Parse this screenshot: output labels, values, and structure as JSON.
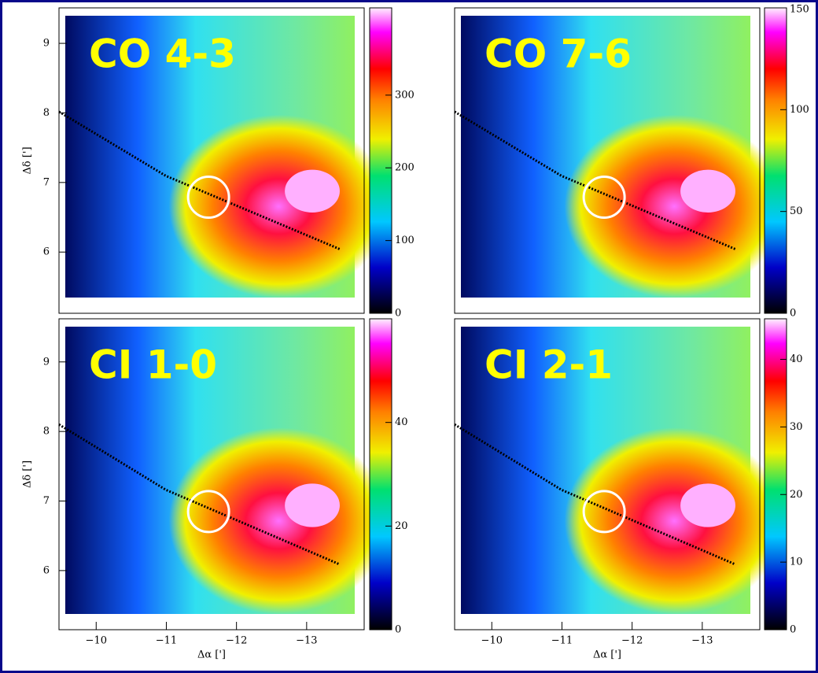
{
  "chart_data": [
    {
      "type": "heatmap",
      "title": "CO 4-3",
      "ylabel": "Δδ [']",
      "xlim": [
        -9.47,
        -13.82
      ],
      "ylim": [
        5.12,
        9.51
      ],
      "yticks": [
        6,
        7,
        8,
        9
      ],
      "clim": [
        0,
        420
      ],
      "cticks": [
        0,
        100,
        200,
        300
      ]
    },
    {
      "type": "heatmap",
      "title": "CO 7-6",
      "xlim": [
        -9.47,
        -13.82
      ],
      "ylim": [
        5.12,
        9.51
      ],
      "clim": [
        0,
        150
      ],
      "cticks": [
        0,
        50,
        100,
        150
      ]
    },
    {
      "type": "heatmap",
      "title": "CI 1-0",
      "xlabel": "Δα [']",
      "ylabel": "Δδ [']",
      "xlim": [
        -9.47,
        -13.82
      ],
      "ylim": [
        5.15,
        9.62
      ],
      "xticks": [
        {
          "value": -10,
          "label": "−10"
        },
        {
          "value": -11,
          "label": "−11"
        },
        {
          "value": -12,
          "label": "−12"
        },
        {
          "value": -13,
          "label": "−13"
        }
      ],
      "yticks": [
        6,
        7,
        8,
        9
      ],
      "clim": [
        0,
        60
      ],
      "cticks": [
        0,
        20,
        40
      ]
    },
    {
      "type": "heatmap",
      "title": "CI 2-1",
      "xlabel": "Δα [']",
      "xlim": [
        -9.47,
        -13.82
      ],
      "ylim": [
        5.15,
        9.62
      ],
      "xticks": [
        {
          "value": -10,
          "label": "−10"
        },
        {
          "value": -11,
          "label": "−11"
        },
        {
          "value": -12,
          "label": "−12"
        },
        {
          "value": -13,
          "label": "−13"
        }
      ],
      "clim": [
        0,
        46
      ],
      "cticks": [
        0,
        10,
        20,
        30,
        40
      ]
    }
  ]
}
